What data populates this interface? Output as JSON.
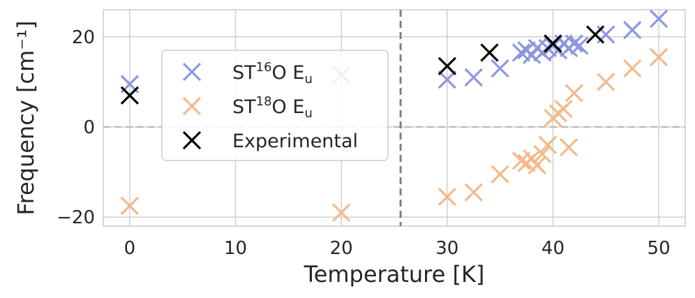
{
  "chart_data": {
    "type": "scatter",
    "xlabel": "Temperature [K]",
    "ylabel": "Frequency [cm⁻¹]",
    "xlim": [
      -2.5,
      52.5
    ],
    "ylim": [
      -22,
      26
    ],
    "xticks": [
      0,
      10,
      20,
      30,
      40,
      50
    ],
    "yticks": [
      -20,
      0,
      20
    ],
    "ytick_labels": [
      "−20",
      "0",
      "20"
    ],
    "grid": true,
    "legend_position": "upper-left",
    "reference_lines": {
      "horizontal_y": 0,
      "vertical_x": 25.6
    },
    "series": [
      {
        "name": "ST16O Eu",
        "legend": {
          "prefix": "ST",
          "mass": "16",
          "mid": "O E",
          "sub": "u"
        },
        "color": "#8c96e0",
        "marker": "x",
        "x": [
          0,
          20,
          30,
          32.5,
          35,
          37,
          37.5,
          38,
          38.5,
          39,
          39.5,
          40,
          40.5,
          41,
          41.5,
          42,
          42.5,
          45,
          47.5,
          50
        ],
        "y": [
          9.5,
          11.5,
          10.5,
          11,
          13,
          16.5,
          17,
          16,
          17.5,
          16.5,
          17.5,
          18,
          17,
          18.5,
          17.5,
          18.5,
          18,
          20.5,
          21.5,
          24
        ]
      },
      {
        "name": "ST18O Eu",
        "legend": {
          "prefix": "ST",
          "mass": "18",
          "mid": "O E",
          "sub": "u"
        },
        "color": "#f5b98a",
        "marker": "x",
        "x": [
          0,
          20,
          30,
          32.5,
          35,
          37,
          37.5,
          38,
          38.5,
          39,
          39.5,
          40,
          40.5,
          41,
          41.5,
          42,
          45,
          47.5,
          50
        ],
        "y": [
          -17.5,
          -19,
          -15.5,
          -14.5,
          -10.5,
          -7.5,
          -8,
          -7,
          -8.5,
          -6,
          -4,
          2,
          3,
          4,
          -4.5,
          7.5,
          10,
          13,
          15.5
        ]
      },
      {
        "name": "Experimental",
        "legend": {
          "prefix": "Experimental",
          "mass": "",
          "mid": "",
          "sub": ""
        },
        "color": "#000000",
        "marker": "x",
        "x": [
          0,
          30,
          34,
          40,
          44
        ],
        "y": [
          7,
          13.5,
          16.5,
          18.5,
          20.5
        ]
      }
    ]
  }
}
